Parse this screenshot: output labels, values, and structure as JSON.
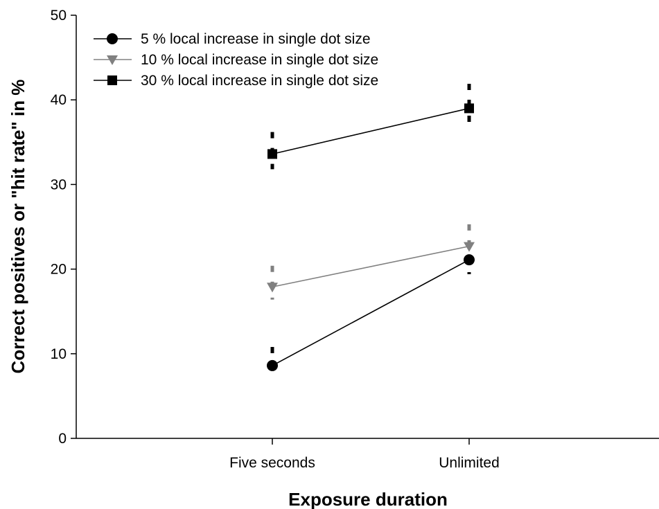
{
  "chart_data": {
    "type": "line",
    "title": "",
    "xlabel": "Exposure duration",
    "ylabel": "Correct positives or \"hit rate\" in %",
    "categories": [
      "Five seconds",
      "Unlimited"
    ],
    "ylim": [
      0,
      50
    ],
    "yticks": [
      0,
      10,
      20,
      30,
      40,
      50
    ],
    "grid": false,
    "legend_position": "top-left",
    "series": [
      {
        "name": "5 % local increase in single dot size",
        "marker": "circle",
        "color": "#000000",
        "values": [
          8.6,
          21.1
        ],
        "err_low": [
          7.2,
          19.4
        ],
        "err_high": [
          10.8,
          23.4
        ]
      },
      {
        "name": "10 % local increase in single dot size",
        "marker": "triangle-down",
        "color": "#808080",
        "values": [
          17.9,
          22.7
        ],
        "err_low": [
          16.4,
          21.4
        ],
        "err_high": [
          20.4,
          25.3
        ]
      },
      {
        "name": "30 % local increase in single dot size",
        "marker": "square",
        "color": "#000000",
        "values": [
          33.6,
          39.0
        ],
        "err_low": [
          31.8,
          37.2
        ],
        "err_high": [
          36.2,
          41.9
        ]
      }
    ]
  }
}
